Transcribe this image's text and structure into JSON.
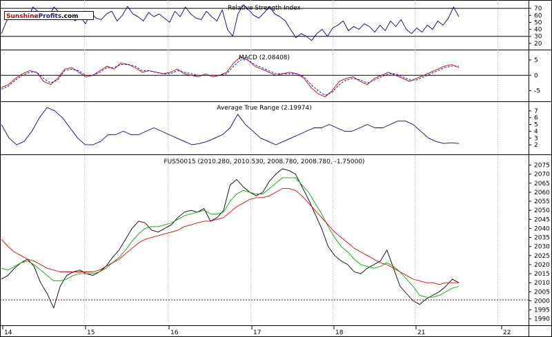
{
  "brand": {
    "part1": "Sunshine",
    "part2": "Profits",
    "suffix": ".com"
  },
  "colors": {
    "price": "#000000",
    "ma_fast": "#00aa00",
    "ma_slow": "#ee0000",
    "rsi": "#000080",
    "macd": "#cc0000",
    "signal": "#0000cc",
    "atr": "#000080",
    "grid": "#bbbbbb",
    "ref": "#8b0000"
  },
  "chart_data": [
    {
      "type": "line",
      "title": "Relative Strength Index",
      "yticks": [
        "70",
        "60",
        "50",
        "40",
        "30",
        "20"
      ],
      "ylim": [
        13,
        78
      ],
      "reference_lines": [
        70,
        30
      ],
      "series": [
        {
          "values": [
            34,
            52,
            62,
            58,
            66,
            55,
            72,
            65,
            60,
            58,
            72,
            64,
            56,
            62,
            52,
            58,
            48,
            64,
            56,
            54,
            62,
            66,
            52,
            60,
            73,
            62,
            58,
            52,
            64,
            58,
            62,
            56,
            50,
            66,
            58,
            72,
            62,
            56,
            54,
            66,
            58,
            52,
            68,
            40,
            30,
            62,
            75,
            68,
            60,
            56,
            64,
            72,
            62,
            58,
            52,
            40,
            28,
            34,
            30,
            24,
            34,
            40,
            30,
            42,
            46,
            52,
            38,
            44,
            40,
            48,
            44,
            36,
            46,
            38,
            52,
            44,
            54,
            40,
            34,
            42,
            36,
            46,
            40,
            52,
            46,
            56,
            72,
            58
          ]
        }
      ]
    },
    {
      "type": "line",
      "title": "MACD (2.08408)",
      "yticks": [
        "5",
        "0",
        "-5"
      ],
      "ylim": [
        -8,
        7
      ],
      "series": [
        {
          "values": [
            -4,
            -3,
            -1,
            0.5,
            1.5,
            1,
            -2,
            -3,
            -1,
            2,
            2.5,
            1,
            -0.5,
            0,
            1.5,
            3,
            2,
            4,
            3.5,
            2.5,
            1,
            1.5,
            1,
            0.5,
            1,
            2,
            0.5,
            0,
            -0.5,
            0.5,
            -0.5,
            0,
            1,
            4,
            6,
            5,
            3,
            2,
            1,
            0,
            0.5,
            1,
            0.5,
            -1,
            -4,
            -6,
            -7,
            -5,
            -2,
            -1,
            -0.5,
            -2,
            -3,
            -1,
            0,
            1,
            0,
            -1,
            -2,
            -1,
            0,
            1,
            2,
            3,
            3.5,
            2.5
          ]
        },
        {
          "values": [
            -4.5,
            -3.5,
            -1.5,
            0,
            1,
            1,
            -1,
            -2.5,
            -1.5,
            1.5,
            2,
            1.5,
            0,
            0,
            1,
            2.5,
            2.5,
            3.5,
            3.5,
            3,
            1.5,
            1.5,
            1,
            0.5,
            0.5,
            1.5,
            1,
            0.5,
            0,
            0,
            0,
            0,
            0.5,
            3,
            5,
            5,
            3.5,
            2.5,
            1.5,
            0.5,
            0.5,
            0.5,
            0.5,
            -0.5,
            -3,
            -5,
            -6.5,
            -5.5,
            -3,
            -1.5,
            -1,
            -1.5,
            -2.5,
            -1.5,
            -0.5,
            0.5,
            0.5,
            -0.5,
            -1.5,
            -1.5,
            -0.5,
            0.5,
            1.5,
            2.5,
            3,
            3
          ]
        }
      ]
    },
    {
      "type": "line",
      "title": "Average True Range (2.19974)",
      "yticks": [
        "7",
        "6",
        "5",
        "4",
        "3",
        "2"
      ],
      "ylim": [
        1,
        7.9
      ],
      "series": [
        {
          "values": [
            5,
            3,
            2,
            2.5,
            4,
            6,
            7.5,
            7,
            6,
            4.5,
            3,
            2,
            2,
            2.5,
            3.5,
            3.5,
            4,
            3.5,
            3.5,
            4,
            4.5,
            4,
            3.5,
            3,
            2.5,
            2,
            2.2,
            2.5,
            3,
            3.5,
            4.5,
            6.5,
            5,
            4,
            3,
            2.5,
            2,
            2.5,
            3,
            3.5,
            4,
            4.5,
            4.5,
            5,
            4.5,
            4,
            4,
            4.5,
            5,
            4.5,
            4.5,
            5,
            5.5,
            5.5,
            5,
            4,
            3,
            2.5,
            2.2,
            2.3,
            2.2
          ]
        }
      ]
    },
    {
      "type": "line",
      "title": "FUS50015 (2010.280, 2010.530, 2008.780, 2008.780, -1.75000)",
      "xticks": [
        "14",
        "15",
        "16",
        "17",
        "18",
        "21",
        "22"
      ],
      "yticks": [
        "2075",
        "2070",
        "2065",
        "2060",
        "2055",
        "2050",
        "2045",
        "2040",
        "2035",
        "2030",
        "2025",
        "2020",
        "2015",
        "2010",
        "2005",
        "2000",
        "1995",
        "1990"
      ],
      "ylim": [
        1988,
        2079
      ],
      "reference_lines": [
        2000.5
      ],
      "series": [
        {
          "values": [
            2012,
            2014,
            2018,
            2021,
            2023,
            2019,
            2010,
            2004,
            1996,
            2008,
            2014,
            2016,
            2017,
            2015,
            2014,
            2016,
            2019,
            2024,
            2028,
            2034,
            2040,
            2044,
            2043,
            2039,
            2038,
            2040,
            2042,
            2046,
            2049,
            2050,
            2049,
            2051,
            2044,
            2046,
            2050,
            2064,
            2067,
            2063,
            2060,
            2058,
            2060,
            2066,
            2070,
            2073,
            2072,
            2070,
            2063,
            2056,
            2048,
            2040,
            2030,
            2025,
            2022,
            2020,
            2016,
            2015,
            2018,
            2020,
            2022,
            2028,
            2018,
            2008,
            2004,
            2000,
            1998,
            2001,
            2003,
            2005,
            2008,
            2012,
            2010
          ]
        },
        {
          "values": [
            2018,
            2017,
            2019,
            2021,
            2022,
            2020,
            2017,
            2014,
            2011,
            2011,
            2012,
            2014,
            2015,
            2015,
            2015,
            2016,
            2018,
            2021,
            2024,
            2028,
            2033,
            2037,
            2040,
            2041,
            2041,
            2042,
            2043,
            2045,
            2047,
            2048,
            2049,
            2050,
            2048,
            2048,
            2049,
            2055,
            2059,
            2061,
            2060,
            2059,
            2059,
            2062,
            2065,
            2068,
            2068,
            2068,
            2064,
            2060,
            2054,
            2048,
            2041,
            2035,
            2030,
            2027,
            2023,
            2020,
            2019,
            2018,
            2019,
            2021,
            2019,
            2016,
            2012,
            2008,
            2003,
            2002,
            2002,
            2003,
            2005,
            2007,
            2008
          ]
        },
        {
          "values": [
            2034,
            2030,
            2027,
            2025,
            2023,
            2022,
            2020,
            2018,
            2017,
            2016,
            2016,
            2016,
            2016,
            2016,
            2016,
            2017,
            2019,
            2021,
            2023,
            2026,
            2029,
            2032,
            2034,
            2035,
            2036,
            2037,
            2038,
            2039,
            2041,
            2042,
            2043,
            2044,
            2044,
            2045,
            2046,
            2049,
            2052,
            2054,
            2056,
            2057,
            2057,
            2058,
            2060,
            2062,
            2062,
            2061,
            2058,
            2054,
            2050,
            2046,
            2042,
            2038,
            2035,
            2032,
            2029,
            2027,
            2025,
            2023,
            2021,
            2020,
            2018,
            2016,
            2014,
            2012,
            2011,
            2010,
            2010,
            2009,
            2010,
            2010,
            2010
          ]
        }
      ]
    }
  ]
}
